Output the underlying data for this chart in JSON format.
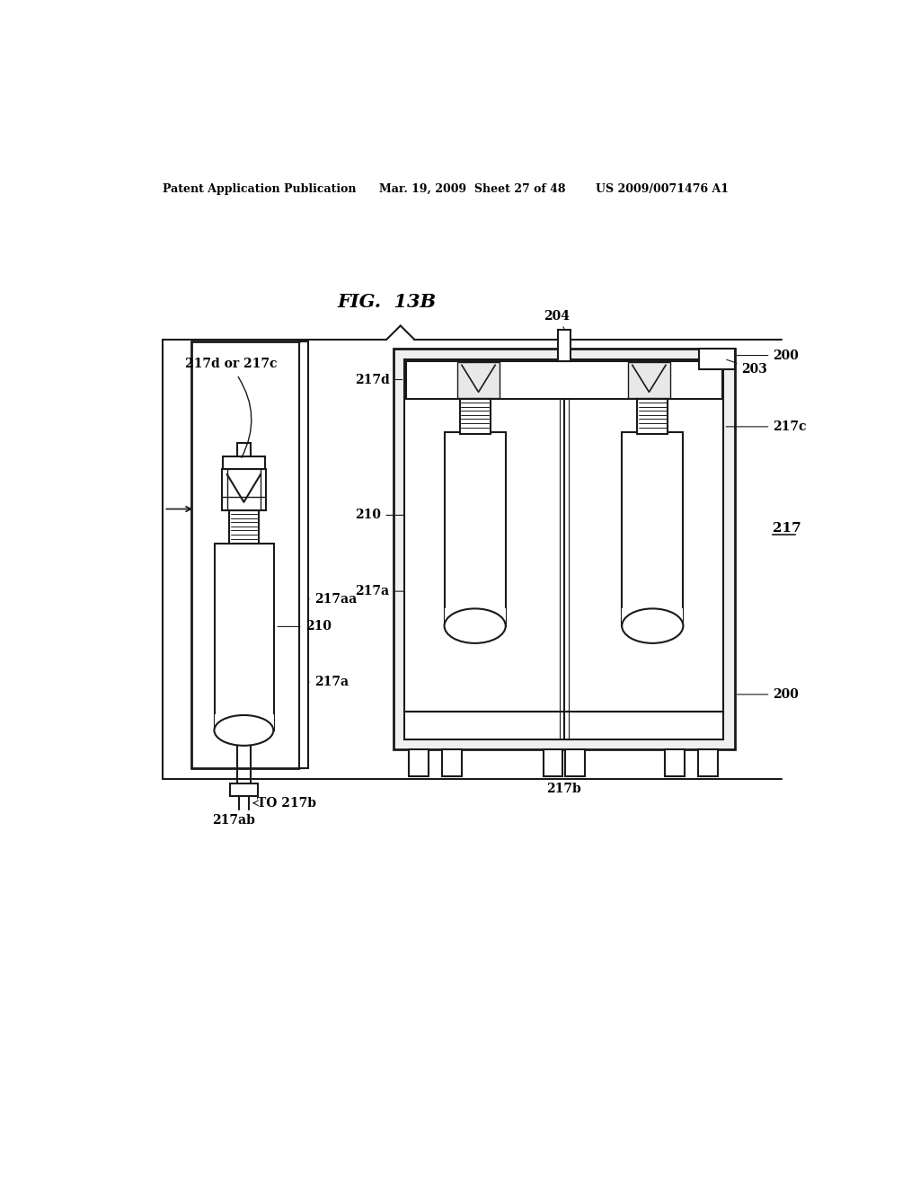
{
  "bg_color": "#ffffff",
  "line_color": "#1a1a1a",
  "header_left": "Patent Application Publication",
  "header_center": "Mar. 19, 2009  Sheet 27 of 48",
  "header_right": "US 2009/0071476 A1",
  "fig_title": "FIG.  13B",
  "labels": {
    "217d_or_217c": "217d or 217c",
    "210_left": "210",
    "217aa": "217aa",
    "217a_left": "217a",
    "to_217b": "TO 217b",
    "217ab": "217ab",
    "204": "204",
    "203": "203",
    "200_top": "200",
    "217d_right": "217d",
    "217c_right": "217c",
    "210_right": "210",
    "217a_right": "217a",
    "217": "217",
    "200_bottom": "200",
    "217b": "217b"
  }
}
